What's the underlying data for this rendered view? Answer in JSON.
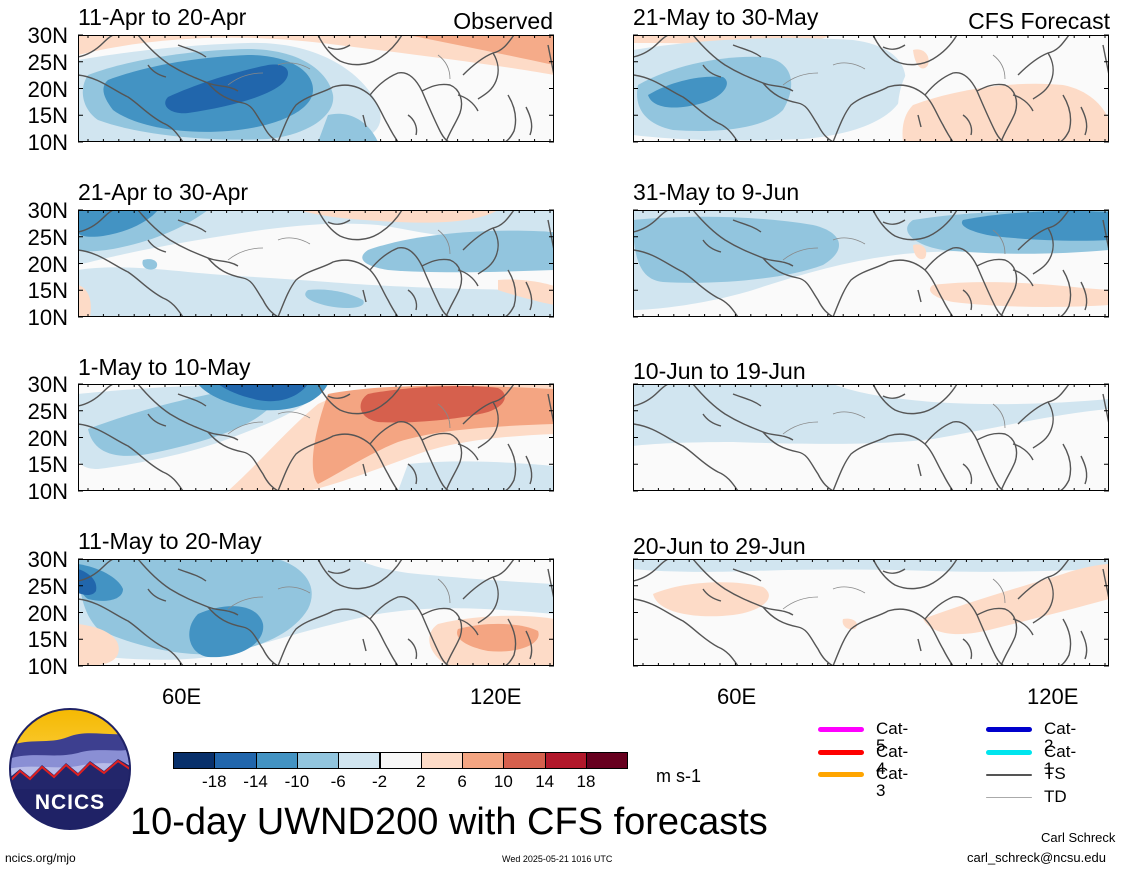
{
  "title": "10-day UWND200 with CFS forecasts",
  "labels": {
    "observed": "Observed",
    "forecast": "CFS Forecast"
  },
  "lat_ticks": [
    "30N",
    "25N",
    "20N",
    "15N",
    "10N"
  ],
  "lon_ticks": [
    "60E",
    "120E"
  ],
  "panels": [
    {
      "title": "11-Apr to 20-Apr",
      "column": "observed",
      "pattern": "obs1"
    },
    {
      "title": "21-Apr to 30-Apr",
      "column": "observed",
      "pattern": "obs2"
    },
    {
      "title": "1-May to 10-May",
      "column": "observed",
      "pattern": "obs3"
    },
    {
      "title": "11-May to 20-May",
      "column": "observed",
      "pattern": "obs4"
    },
    {
      "title": "21-May to 30-May",
      "column": "forecast",
      "pattern": "fc1"
    },
    {
      "title": "31-May to 9-Jun",
      "column": "forecast",
      "pattern": "fc2"
    },
    {
      "title": "10-Jun to 19-Jun",
      "column": "forecast",
      "pattern": "fc3"
    },
    {
      "title": "20-Jun to 29-Jun",
      "column": "forecast",
      "pattern": "fc4"
    }
  ],
  "colorbar": {
    "colors": [
      "#08306b",
      "#2166ac",
      "#4393c3",
      "#92c5de",
      "#d1e5f0",
      "#f7f7f7",
      "#fddbc7",
      "#f4a582",
      "#d6604d",
      "#b2182b",
      "#67001f"
    ],
    "labels": [
      "-18",
      "-14",
      "-10",
      "-6",
      "-2",
      "2",
      "6",
      "10",
      "14",
      "18"
    ],
    "units": "m s-1"
  },
  "legend": [
    {
      "label": "Cat-5",
      "color": "#ff00ff"
    },
    {
      "label": "Cat-4",
      "color": "#ff0000"
    },
    {
      "label": "Cat-3",
      "color": "#ffa500"
    },
    {
      "label": "Cat-2",
      "color": "#0000cc"
    },
    {
      "label": "Cat-1",
      "color": "#00e5ee"
    },
    {
      "label": "TS",
      "color": "#555555"
    },
    {
      "label": "TD",
      "color": "#aaaaaa"
    }
  ],
  "logo": {
    "text": "NCICS"
  },
  "footer": {
    "url": "ncics.org/mjo",
    "timestamp": "Wed 2025-05-21 1016 UTC",
    "author": "Carl Schreck",
    "email": "carl_schreck@ncsu.edu"
  }
}
